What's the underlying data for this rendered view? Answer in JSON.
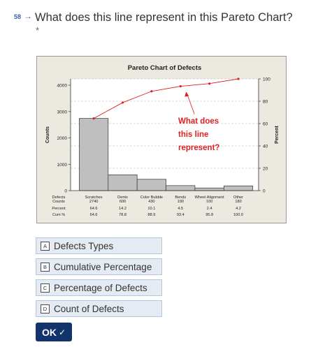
{
  "question": {
    "number": "58",
    "arrow": "→",
    "text": "What does this line represent in this Pareto Chart?",
    "required_marker": "*"
  },
  "chart_data": {
    "type": "bar",
    "title": "Pareto Chart of Defects",
    "ylabel_left": "Counts",
    "ylabel_right": "Percent",
    "categories": [
      "Scratches",
      "Dents",
      "Color Bubble",
      "Bends",
      "Wheel Alignment",
      "Other"
    ],
    "series": [
      {
        "values": [
          2740,
          600,
          430,
          190,
          100,
          180
        ]
      },
      {
        "values": [
          64.6,
          78.8,
          88.9,
          93.4,
          95.8,
          100.0
        ]
      }
    ],
    "left_ticks": [
      0,
      1000,
      2000,
      3000,
      4000
    ],
    "right_ticks": [
      0,
      20,
      40,
      60,
      80,
      100
    ],
    "ylim_left": [
      0,
      4240
    ],
    "ylim_right": [
      0,
      100
    ],
    "grid": "dashed horizontal",
    "table": {
      "row_labels": [
        "Defects",
        "Counts",
        "Percent",
        "Cum %"
      ],
      "counts": [
        "2740",
        "600",
        "430",
        "190",
        "100",
        "180"
      ],
      "percent": [
        "64.6",
        "14.2",
        "10.1",
        "4.5",
        "2.4",
        "4.2"
      ],
      "cum": [
        "64.6",
        "78.8",
        "88.9",
        "93.4",
        "95.8",
        "100.0"
      ]
    },
    "annotation": [
      "What does",
      "this line",
      "represent?"
    ],
    "colors": {
      "bar": "#bfbfbf",
      "line": "#e02020",
      "annotation": "#e02020",
      "background": "#ece9e1"
    }
  },
  "options": [
    {
      "key": "A",
      "label": "Defects Types"
    },
    {
      "key": "B",
      "label": "Cumulative Percentage"
    },
    {
      "key": "C",
      "label": "Percentage of Defects"
    },
    {
      "key": "D",
      "label": "Count of Defects"
    }
  ],
  "ok_button": {
    "label": "OK",
    "icon": "check-icon"
  }
}
